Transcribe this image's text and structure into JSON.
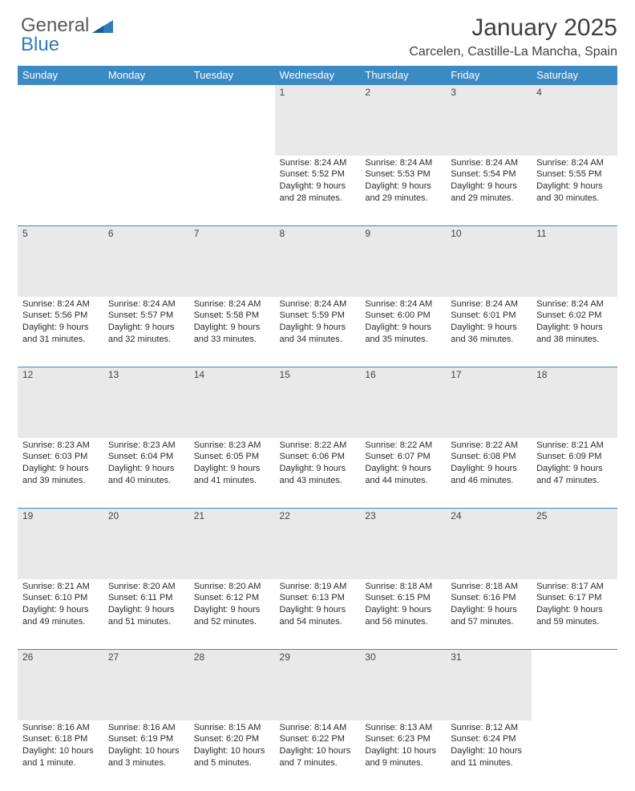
{
  "logo": {
    "text1": "General",
    "text2": "Blue",
    "color1": "#5a5a5a",
    "color2": "#2f7bbf"
  },
  "title": "January 2025",
  "location": "Carcelen, Castille-La Mancha, Spain",
  "colors": {
    "header_bg": "#3b8ac4",
    "header_text": "#ffffff",
    "daynum_bg": "#e9e9e9",
    "border": "#3b8ac4",
    "body_text": "#2a2a2a",
    "page_bg": "#ffffff"
  },
  "typography": {
    "title_fontsize": 30,
    "location_fontsize": 16,
    "header_fontsize": 13,
    "cell_fontsize": 11
  },
  "weekdays": [
    "Sunday",
    "Monday",
    "Tuesday",
    "Wednesday",
    "Thursday",
    "Friday",
    "Saturday"
  ],
  "weeks": [
    [
      null,
      null,
      null,
      {
        "day": "1",
        "sunrise": "Sunrise: 8:24 AM",
        "sunset": "Sunset: 5:52 PM",
        "daylight": "Daylight: 9 hours and 28 minutes."
      },
      {
        "day": "2",
        "sunrise": "Sunrise: 8:24 AM",
        "sunset": "Sunset: 5:53 PM",
        "daylight": "Daylight: 9 hours and 29 minutes."
      },
      {
        "day": "3",
        "sunrise": "Sunrise: 8:24 AM",
        "sunset": "Sunset: 5:54 PM",
        "daylight": "Daylight: 9 hours and 29 minutes."
      },
      {
        "day": "4",
        "sunrise": "Sunrise: 8:24 AM",
        "sunset": "Sunset: 5:55 PM",
        "daylight": "Daylight: 9 hours and 30 minutes."
      }
    ],
    [
      {
        "day": "5",
        "sunrise": "Sunrise: 8:24 AM",
        "sunset": "Sunset: 5:56 PM",
        "daylight": "Daylight: 9 hours and 31 minutes."
      },
      {
        "day": "6",
        "sunrise": "Sunrise: 8:24 AM",
        "sunset": "Sunset: 5:57 PM",
        "daylight": "Daylight: 9 hours and 32 minutes."
      },
      {
        "day": "7",
        "sunrise": "Sunrise: 8:24 AM",
        "sunset": "Sunset: 5:58 PM",
        "daylight": "Daylight: 9 hours and 33 minutes."
      },
      {
        "day": "8",
        "sunrise": "Sunrise: 8:24 AM",
        "sunset": "Sunset: 5:59 PM",
        "daylight": "Daylight: 9 hours and 34 minutes."
      },
      {
        "day": "9",
        "sunrise": "Sunrise: 8:24 AM",
        "sunset": "Sunset: 6:00 PM",
        "daylight": "Daylight: 9 hours and 35 minutes."
      },
      {
        "day": "10",
        "sunrise": "Sunrise: 8:24 AM",
        "sunset": "Sunset: 6:01 PM",
        "daylight": "Daylight: 9 hours and 36 minutes."
      },
      {
        "day": "11",
        "sunrise": "Sunrise: 8:24 AM",
        "sunset": "Sunset: 6:02 PM",
        "daylight": "Daylight: 9 hours and 38 minutes."
      }
    ],
    [
      {
        "day": "12",
        "sunrise": "Sunrise: 8:23 AM",
        "sunset": "Sunset: 6:03 PM",
        "daylight": "Daylight: 9 hours and 39 minutes."
      },
      {
        "day": "13",
        "sunrise": "Sunrise: 8:23 AM",
        "sunset": "Sunset: 6:04 PM",
        "daylight": "Daylight: 9 hours and 40 minutes."
      },
      {
        "day": "14",
        "sunrise": "Sunrise: 8:23 AM",
        "sunset": "Sunset: 6:05 PM",
        "daylight": "Daylight: 9 hours and 41 minutes."
      },
      {
        "day": "15",
        "sunrise": "Sunrise: 8:22 AM",
        "sunset": "Sunset: 6:06 PM",
        "daylight": "Daylight: 9 hours and 43 minutes."
      },
      {
        "day": "16",
        "sunrise": "Sunrise: 8:22 AM",
        "sunset": "Sunset: 6:07 PM",
        "daylight": "Daylight: 9 hours and 44 minutes."
      },
      {
        "day": "17",
        "sunrise": "Sunrise: 8:22 AM",
        "sunset": "Sunset: 6:08 PM",
        "daylight": "Daylight: 9 hours and 46 minutes."
      },
      {
        "day": "18",
        "sunrise": "Sunrise: 8:21 AM",
        "sunset": "Sunset: 6:09 PM",
        "daylight": "Daylight: 9 hours and 47 minutes."
      }
    ],
    [
      {
        "day": "19",
        "sunrise": "Sunrise: 8:21 AM",
        "sunset": "Sunset: 6:10 PM",
        "daylight": "Daylight: 9 hours and 49 minutes."
      },
      {
        "day": "20",
        "sunrise": "Sunrise: 8:20 AM",
        "sunset": "Sunset: 6:11 PM",
        "daylight": "Daylight: 9 hours and 51 minutes."
      },
      {
        "day": "21",
        "sunrise": "Sunrise: 8:20 AM",
        "sunset": "Sunset: 6:12 PM",
        "daylight": "Daylight: 9 hours and 52 minutes."
      },
      {
        "day": "22",
        "sunrise": "Sunrise: 8:19 AM",
        "sunset": "Sunset: 6:13 PM",
        "daylight": "Daylight: 9 hours and 54 minutes."
      },
      {
        "day": "23",
        "sunrise": "Sunrise: 8:18 AM",
        "sunset": "Sunset: 6:15 PM",
        "daylight": "Daylight: 9 hours and 56 minutes."
      },
      {
        "day": "24",
        "sunrise": "Sunrise: 8:18 AM",
        "sunset": "Sunset: 6:16 PM",
        "daylight": "Daylight: 9 hours and 57 minutes."
      },
      {
        "day": "25",
        "sunrise": "Sunrise: 8:17 AM",
        "sunset": "Sunset: 6:17 PM",
        "daylight": "Daylight: 9 hours and 59 minutes."
      }
    ],
    [
      {
        "day": "26",
        "sunrise": "Sunrise: 8:16 AM",
        "sunset": "Sunset: 6:18 PM",
        "daylight": "Daylight: 10 hours and 1 minute."
      },
      {
        "day": "27",
        "sunrise": "Sunrise: 8:16 AM",
        "sunset": "Sunset: 6:19 PM",
        "daylight": "Daylight: 10 hours and 3 minutes."
      },
      {
        "day": "28",
        "sunrise": "Sunrise: 8:15 AM",
        "sunset": "Sunset: 6:20 PM",
        "daylight": "Daylight: 10 hours and 5 minutes."
      },
      {
        "day": "29",
        "sunrise": "Sunrise: 8:14 AM",
        "sunset": "Sunset: 6:22 PM",
        "daylight": "Daylight: 10 hours and 7 minutes."
      },
      {
        "day": "30",
        "sunrise": "Sunrise: 8:13 AM",
        "sunset": "Sunset: 6:23 PM",
        "daylight": "Daylight: 10 hours and 9 minutes."
      },
      {
        "day": "31",
        "sunrise": "Sunrise: 8:12 AM",
        "sunset": "Sunset: 6:24 PM",
        "daylight": "Daylight: 10 hours and 11 minutes."
      },
      null
    ]
  ]
}
